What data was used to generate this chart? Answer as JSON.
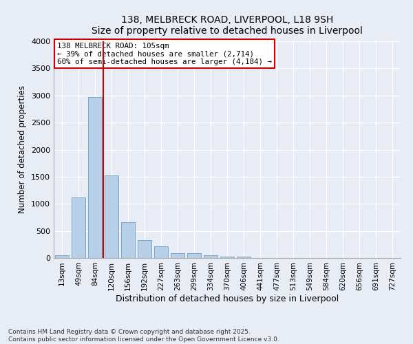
{
  "title1": "138, MELBRECK ROAD, LIVERPOOL, L18 9SH",
  "title2": "Size of property relative to detached houses in Liverpool",
  "xlabel": "Distribution of detached houses by size in Liverpool",
  "ylabel": "Number of detached properties",
  "categories": [
    "13sqm",
    "49sqm",
    "84sqm",
    "120sqm",
    "156sqm",
    "192sqm",
    "227sqm",
    "263sqm",
    "299sqm",
    "334sqm",
    "370sqm",
    "406sqm",
    "441sqm",
    "477sqm",
    "513sqm",
    "549sqm",
    "584sqm",
    "620sqm",
    "656sqm",
    "691sqm",
    "727sqm"
  ],
  "values": [
    55,
    1120,
    2970,
    1520,
    660,
    330,
    210,
    95,
    90,
    55,
    30,
    25,
    0,
    0,
    0,
    0,
    0,
    0,
    0,
    0,
    0
  ],
  "bar_color": "#b8cfe8",
  "bar_edge_color": "#6b9dc2",
  "vline_color": "#cc0000",
  "vline_pos": 2.5,
  "annotation_line1": "138 MELBRECK ROAD: 105sqm",
  "annotation_line2": "← 39% of detached houses are smaller (2,714)",
  "annotation_line3": "60% of semi-detached houses are larger (4,184) →",
  "annotation_box_edge": "#cc0000",
  "ylim": [
    0,
    4000
  ],
  "yticks": [
    0,
    500,
    1000,
    1500,
    2000,
    2500,
    3000,
    3500,
    4000
  ],
  "footnote1": "Contains HM Land Registry data © Crown copyright and database right 2025.",
  "footnote2": "Contains public sector information licensed under the Open Government Licence v3.0.",
  "bg_color": "#e8edf5"
}
